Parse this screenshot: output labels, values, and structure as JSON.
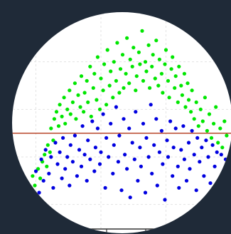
{
  "chart_data": {
    "type": "scatter",
    "title": "",
    "xlabel": "",
    "ylabel": "",
    "grid": true,
    "legend": "none",
    "xlim": [
      0,
      10
    ],
    "ylim": [
      -4,
      5
    ],
    "hline": {
      "y": 0,
      "color": "#b33a1b"
    },
    "series": [
      {
        "color": "#00e600",
        "points": [
          [
            0.3,
            -2.4
          ],
          [
            0.45,
            -2.6
          ],
          [
            0.6,
            -2.1
          ],
          [
            0.7,
            -2.7
          ],
          [
            0.85,
            -1.8
          ],
          [
            0.95,
            -2.2
          ],
          [
            1.1,
            -1.5
          ],
          [
            1.2,
            -1.9
          ],
          [
            1.3,
            -1.2
          ],
          [
            1.4,
            -0.9
          ],
          [
            1.5,
            -1.4
          ],
          [
            1.55,
            -0.5
          ],
          [
            1.65,
            -0.8
          ],
          [
            1.7,
            0.2
          ],
          [
            1.8,
            -0.3
          ],
          [
            1.85,
            0.6
          ],
          [
            1.95,
            0.9
          ],
          [
            2.05,
            0.3
          ],
          [
            2.1,
            1.2
          ],
          [
            2.2,
            0.7
          ],
          [
            2.3,
            1.5
          ],
          [
            2.35,
            0.4
          ],
          [
            2.45,
            1.0
          ],
          [
            2.55,
            1.8
          ],
          [
            2.6,
            0.8
          ],
          [
            2.7,
            1.3
          ],
          [
            2.8,
            2.1
          ],
          [
            2.85,
            0.6
          ],
          [
            2.95,
            1.6
          ],
          [
            3.05,
            1.1
          ],
          [
            3.1,
            2.4
          ],
          [
            3.2,
            0.9
          ],
          [
            3.25,
            1.7
          ],
          [
            3.35,
            2.2
          ],
          [
            3.4,
            1.3
          ],
          [
            3.5,
            2.8
          ],
          [
            3.55,
            0.7
          ],
          [
            3.65,
            1.9
          ],
          [
            3.7,
            2.5
          ],
          [
            3.8,
            1.4
          ],
          [
            3.85,
            3.2
          ],
          [
            3.95,
            1.0
          ],
          [
            4.0,
            2.3
          ],
          [
            4.1,
            1.8
          ],
          [
            4.15,
            2.9
          ],
          [
            4.25,
            1.2
          ],
          [
            4.3,
            3.5
          ],
          [
            4.4,
            2.0
          ],
          [
            4.45,
            2.6
          ],
          [
            4.55,
            1.5
          ],
          [
            4.6,
            3.0
          ],
          [
            4.7,
            2.2
          ],
          [
            4.75,
            3.8
          ],
          [
            4.85,
            1.7
          ],
          [
            4.9,
            2.7
          ],
          [
            5.0,
            3.3
          ],
          [
            5.05,
            1.9
          ],
          [
            5.15,
            2.5
          ],
          [
            5.2,
            4.0
          ],
          [
            5.3,
            2.1
          ],
          [
            5.35,
            3.1
          ],
          [
            5.45,
            2.8
          ],
          [
            5.5,
            3.6
          ],
          [
            5.6,
            1.8
          ],
          [
            5.65,
            2.4
          ],
          [
            5.75,
            3.4
          ],
          [
            5.8,
            2.9
          ],
          [
            5.9,
            4.3
          ],
          [
            5.95,
            2.2
          ],
          [
            6.05,
            3.0
          ],
          [
            6.1,
            2.6
          ],
          [
            6.2,
            3.7
          ],
          [
            6.25,
            1.9
          ],
          [
            6.35,
            2.8
          ],
          [
            6.4,
            3.3
          ],
          [
            6.5,
            2.3
          ],
          [
            6.55,
            3.9
          ],
          [
            6.65,
            2.0
          ],
          [
            6.7,
            3.1
          ],
          [
            6.8,
            2.5
          ],
          [
            6.85,
            1.7
          ],
          [
            6.95,
            2.9
          ],
          [
            7.0,
            3.5
          ],
          [
            7.1,
            2.2
          ],
          [
            7.15,
            1.5
          ],
          [
            7.25,
            2.7
          ],
          [
            7.3,
            3.2
          ],
          [
            7.4,
            1.9
          ],
          [
            7.45,
            2.4
          ],
          [
            7.55,
            1.3
          ],
          [
            7.6,
            2.8
          ],
          [
            7.7,
            2.0
          ],
          [
            7.75,
            1.6
          ],
          [
            7.85,
            2.5
          ],
          [
            7.9,
            1.1
          ],
          [
            8.0,
            2.1
          ],
          [
            8.05,
            1.4
          ],
          [
            8.15,
            0.9
          ],
          [
            8.2,
            1.8
          ],
          [
            8.3,
            0.6
          ],
          [
            8.4,
            1.3
          ],
          [
            8.5,
            0.3
          ],
          [
            8.6,
            1.0
          ],
          [
            8.7,
            0.5
          ],
          [
            8.8,
            1.5
          ],
          [
            8.9,
            0.1
          ],
          [
            9.0,
            0.8
          ],
          [
            9.1,
            -0.2
          ],
          [
            9.2,
            0.4
          ],
          [
            9.3,
            1.1
          ],
          [
            9.4,
            -0.4
          ],
          [
            9.5,
            0.2
          ],
          [
            9.6,
            -0.6
          ],
          [
            9.7,
            0.5
          ],
          [
            9.8,
            -0.1
          ]
        ]
      },
      {
        "color": "#0000e0",
        "points": [
          [
            0.4,
            -3.0
          ],
          [
            0.55,
            -2.8
          ],
          [
            0.75,
            -2.3
          ],
          [
            0.9,
            -3.2
          ],
          [
            1.0,
            -1.6
          ],
          [
            1.15,
            -2.5
          ],
          [
            1.25,
            -1.1
          ],
          [
            1.35,
            -2.0
          ],
          [
            1.45,
            -0.7
          ],
          [
            1.6,
            -1.7
          ],
          [
            1.7,
            -1.0
          ],
          [
            1.8,
            -2.3
          ],
          [
            1.9,
            -0.4
          ],
          [
            2.0,
            -1.3
          ],
          [
            2.1,
            -0.8
          ],
          [
            2.2,
            -1.9
          ],
          [
            2.25,
            -0.2
          ],
          [
            2.35,
            -1.5
          ],
          [
            2.45,
            -1.0
          ],
          [
            2.55,
            -2.2
          ],
          [
            2.6,
            -0.5
          ],
          [
            2.7,
            -1.2
          ],
          [
            2.8,
            -0.1
          ],
          [
            2.9,
            -1.8
          ],
          [
            3.0,
            -0.7
          ],
          [
            3.1,
            -1.4
          ],
          [
            3.15,
            0.3
          ],
          [
            3.25,
            -0.9
          ],
          [
            3.35,
            -2.0
          ],
          [
            3.4,
            -0.3
          ],
          [
            3.5,
            -1.1
          ],
          [
            3.6,
            0.5
          ],
          [
            3.7,
            -1.6
          ],
          [
            3.75,
            -0.6
          ],
          [
            3.85,
            0.2
          ],
          [
            3.95,
            -1.3
          ],
          [
            4.0,
            -0.8
          ],
          [
            4.1,
            0.8
          ],
          [
            4.2,
            -2.3
          ],
          [
            4.25,
            -0.2
          ],
          [
            4.35,
            -1.0
          ],
          [
            4.45,
            0.4
          ],
          [
            4.55,
            -1.7
          ],
          [
            4.6,
            -0.5
          ],
          [
            4.7,
            1.1
          ],
          [
            4.8,
            -1.2
          ],
          [
            4.85,
            -0.1
          ],
          [
            4.95,
            -2.4
          ],
          [
            5.05,
            0.6
          ],
          [
            5.1,
            -0.9
          ],
          [
            5.2,
            -1.5
          ],
          [
            5.3,
            0.2
          ],
          [
            5.35,
            -2.7
          ],
          [
            5.45,
            -0.4
          ],
          [
            5.55,
            -1.1
          ],
          [
            5.6,
            0.9
          ],
          [
            5.7,
            -2.0
          ],
          [
            5.8,
            -0.6
          ],
          [
            5.85,
            -1.4
          ],
          [
            5.95,
            0.4
          ],
          [
            6.05,
            -2.5
          ],
          [
            6.1,
            -0.2
          ],
          [
            6.2,
            -1.0
          ],
          [
            6.3,
            1.2
          ],
          [
            6.35,
            -1.7
          ],
          [
            6.45,
            -0.5
          ],
          [
            6.55,
            0.6
          ],
          [
            6.6,
            -2.2
          ],
          [
            6.7,
            -0.8
          ],
          [
            6.8,
            0.1
          ],
          [
            6.85,
            -1.3
          ],
          [
            6.95,
            -2.8
          ],
          [
            7.05,
            -0.3
          ],
          [
            7.1,
            -1.0
          ],
          [
            7.2,
            0.5
          ],
          [
            7.3,
            -1.8
          ],
          [
            7.35,
            -0.6
          ],
          [
            7.45,
            0.2
          ],
          [
            7.55,
            -1.4
          ],
          [
            7.6,
            -2.3
          ],
          [
            7.7,
            -0.7
          ],
          [
            7.8,
            0.3
          ],
          [
            7.85,
            -1.1
          ],
          [
            7.95,
            -2.0
          ],
          [
            8.05,
            -0.4
          ],
          [
            8.1,
            -1.5
          ],
          [
            8.2,
            0.1
          ],
          [
            8.3,
            -0.9
          ],
          [
            8.4,
            -2.4
          ],
          [
            8.45,
            -0.2
          ],
          [
            8.55,
            -1.2
          ],
          [
            8.65,
            -0.6
          ],
          [
            8.75,
            -1.8
          ],
          [
            8.85,
            -0.3
          ],
          [
            8.95,
            -1.0
          ],
          [
            9.05,
            -2.1
          ],
          [
            9.15,
            -0.5
          ],
          [
            9.25,
            -1.4
          ],
          [
            9.35,
            -0.8
          ],
          [
            9.45,
            -2.6
          ],
          [
            9.55,
            -0.9
          ],
          [
            9.65,
            -1.6
          ],
          [
            9.75,
            -1.1
          ]
        ]
      }
    ]
  }
}
